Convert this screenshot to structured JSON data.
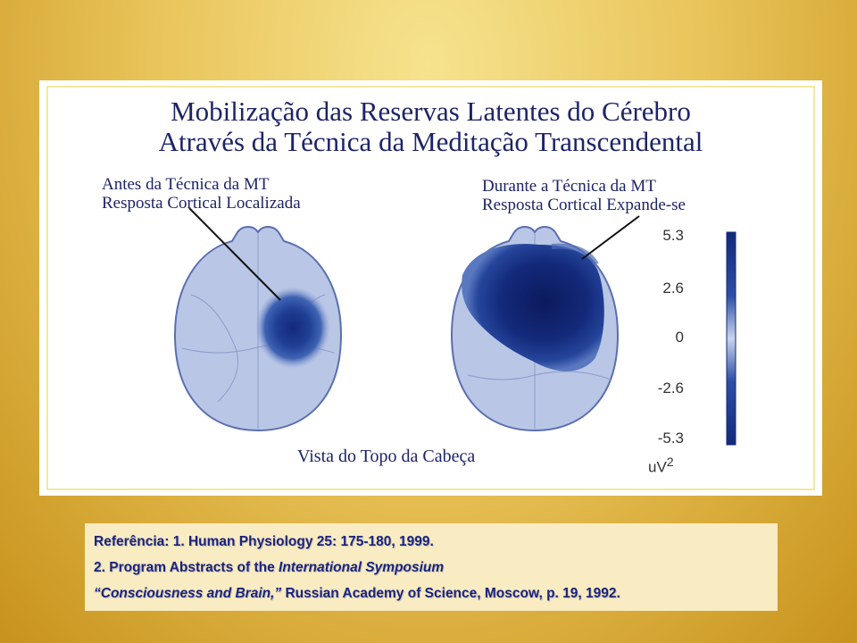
{
  "title": {
    "line1": "Mobilização das Reservas Latentes do Cérebro",
    "line2": "Através da Técnica da Meditação Transcendental"
  },
  "before": {
    "line1": "Antes da Técnica da MT",
    "line2": "Resposta Cortical Localizada"
  },
  "during": {
    "line1": "Durante a Técnica da MT",
    "line2": "Resposta Cortical Expande-se"
  },
  "caption": "Vista do Topo da Cabeça",
  "scale": {
    "ticks": [
      "5.3",
      "2.6",
      "0",
      "-2.6",
      "-5.3"
    ],
    "unit_base": "uV",
    "unit_exp": "2"
  },
  "colors": {
    "background": "#e0b440",
    "title": "#1d2466",
    "map_light": "#b9c6e6",
    "map_dark": "#16307a",
    "reference_text": "#1a237e"
  },
  "reference": {
    "line1": "Referência: 1. Human Physiology 25: 175-180, 1999.",
    "line2_prefix": "2. Program Abstracts of the ",
    "line2_italic": "International Symposium",
    "line3_italic": "“Consciousness and Brain,”",
    "line3_rest": " Russian Academy of Science, Moscow, p. 19, 1992."
  }
}
